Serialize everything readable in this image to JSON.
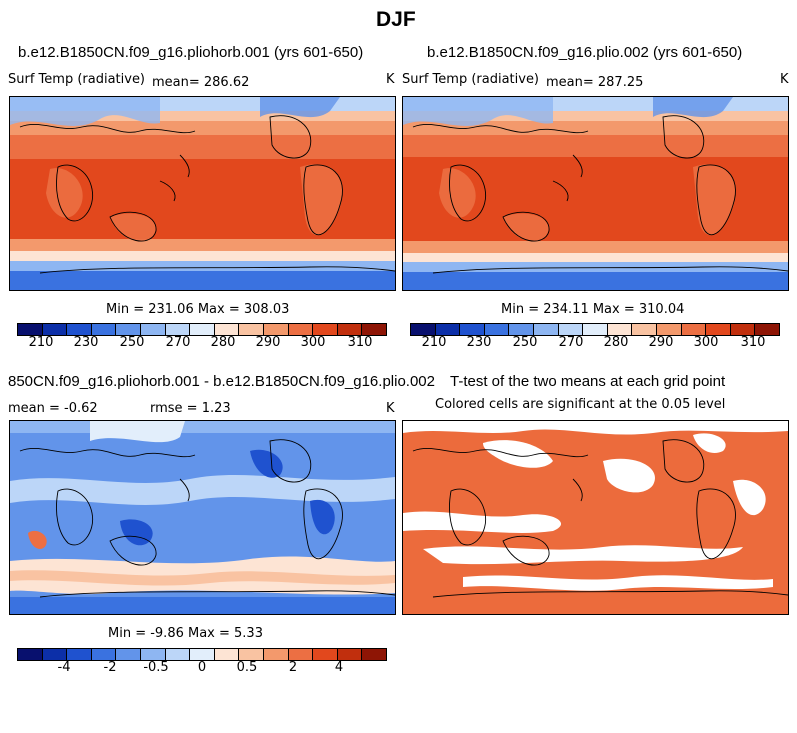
{
  "title": "DJF",
  "panels": {
    "p1": {
      "title": "b.e12.B1850CN.f09_g16.pliohorb.001 (yrs 601-650)",
      "variable": "Surf Temp (radiative)",
      "mean": "mean=  286.62",
      "units": "K",
      "minmax": "Min = 231.06 Max = 308.03"
    },
    "p2": {
      "title": "b.e12.B1850CN.f09_g16.plio.002 (yrs 601-650)",
      "variable": "Surf Temp (radiative)",
      "mean": "mean=  287.25",
      "units": "K",
      "minmax": "Min = 234.11 Max = 310.04"
    },
    "p3": {
      "title": "850CN.f09_g16.pliohorb.001 - b.e12.B1850CN.f09_g16.plio.002",
      "mean": "mean =   -0.62",
      "rmse": "rmse =    1.23",
      "units": "K",
      "minmax": "Min =   -9.86 Max =    5.33"
    },
    "p4": {
      "title": "T-test of the two means at each grid point",
      "subtitle": "Colored cells are significant at the 0.05 level"
    }
  },
  "colorbar_abs": {
    "colors": [
      "#08106e",
      "#0c2fa8",
      "#1f52cf",
      "#3a72e0",
      "#6294ea",
      "#8eb6f2",
      "#bcd6f8",
      "#e2eefb",
      "#fde4d4",
      "#f9c3a2",
      "#f3996c",
      "#ec6f43",
      "#e2481d",
      "#c12f0d",
      "#8e1505"
    ],
    "labels": [
      "210",
      "230",
      "250",
      "270",
      "280",
      "290",
      "300",
      "310"
    ]
  },
  "colorbar_diff": {
    "colors": [
      "#08106e",
      "#0c2fa8",
      "#1f52cf",
      "#3a72e0",
      "#6294ea",
      "#8eb6f2",
      "#bcd6f8",
      "#e2eefb",
      "#fde4d4",
      "#f9c3a2",
      "#f3996c",
      "#ec6f43",
      "#e2481d",
      "#c12f0d",
      "#8e1505"
    ],
    "labels": [
      "-4",
      "-2",
      "-0.5",
      "0",
      "0.5",
      "2",
      "4"
    ]
  },
  "colors": {
    "ttest_fill": "#ec6b3c",
    "warm": "#ea5a27",
    "cool": "#3a72e0"
  }
}
